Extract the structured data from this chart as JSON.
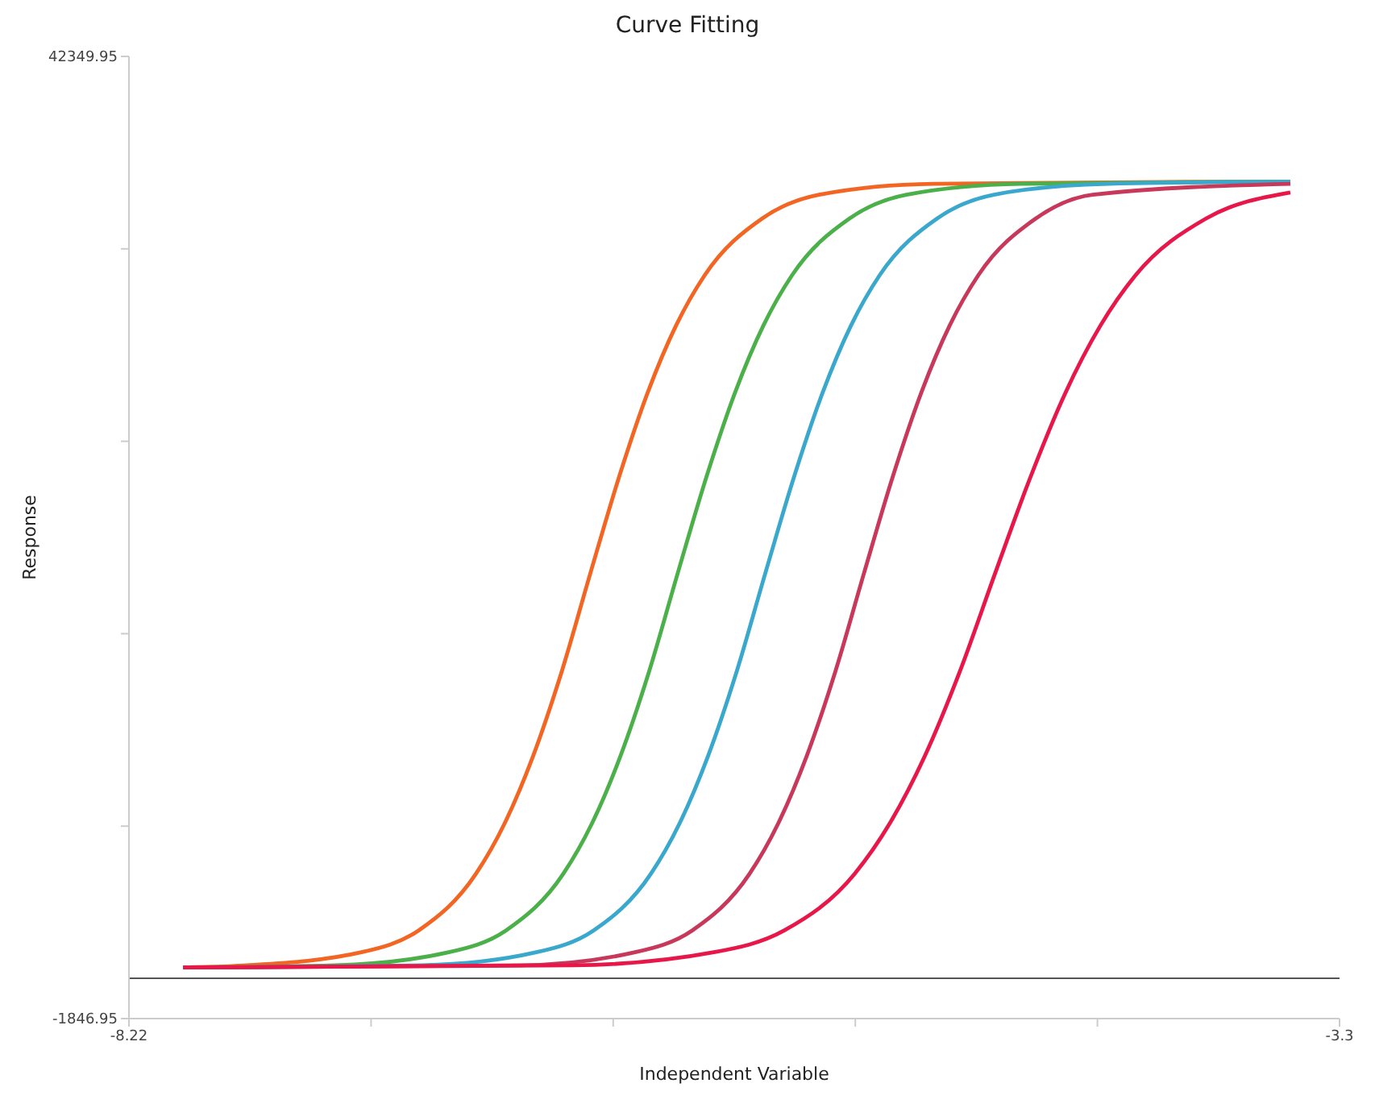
{
  "chart_data": {
    "type": "line",
    "title": "Curve Fitting",
    "xlabel": "Independent Variable",
    "ylabel": "Response",
    "xlim": [
      -8.22,
      -3.3
    ],
    "xticks": [
      -8.22,
      {
        "value": -7.236,
        "label": null
      },
      {
        "value": -6.252,
        "label": null
      },
      {
        "value": -5.268,
        "label": null
      },
      {
        "value": -4.284,
        "label": null
      },
      -3.3
    ],
    "ylim": [
      -1846.95,
      42349.95
    ],
    "yticks": [
      -1846.95,
      {
        "value": 6992.43,
        "label": null
      },
      {
        "value": 15831.81,
        "label": null
      },
      {
        "value": 24671.19,
        "label": null
      },
      {
        "value": 33510.57,
        "label": null
      },
      42349.95
    ],
    "grid": false,
    "marker": "none",
    "line_style": "solid",
    "ref_lines": [
      {
        "axis": "y",
        "value": 0,
        "color": "#555555"
      }
    ],
    "series": [
      {
        "color": "#f26522",
        "x": [
          -8,
          -7.74,
          -7.275,
          -7.043,
          -6.81,
          -6.694,
          -6.578,
          -6.461,
          -6.345,
          -6.229,
          -6.112,
          -5.996,
          -5.88,
          -5.647,
          -5.415,
          -4.95,
          -3.5
        ],
        "values": [
          500,
          600,
          1200,
          2200,
          4800,
          7100,
          10200,
          14100,
          18600,
          23000,
          26900,
          30000,
          32300,
          34900,
          36000,
          36500,
          36600
        ]
      },
      {
        "color": "#4cb04a",
        "x": [
          -8,
          -7.385,
          -6.92,
          -6.688,
          -6.455,
          -6.339,
          -6.223,
          -6.106,
          -5.99,
          -5.874,
          -5.757,
          -5.641,
          -5.525,
          -5.292,
          -5.06,
          -4.595,
          -3.5
        ],
        "values": [
          500,
          600,
          1200,
          2200,
          4800,
          7100,
          10200,
          14100,
          18600,
          23000,
          26900,
          30000,
          32300,
          34900,
          36000,
          36500,
          36600
        ]
      },
      {
        "color": "#3aa8cc",
        "x": [
          -8,
          -7.029,
          -6.564,
          -6.332,
          -6.099,
          -5.983,
          -5.867,
          -5.75,
          -5.634,
          -5.518,
          -5.401,
          -5.285,
          -5.169,
          -4.936,
          -4.704,
          -4.239,
          -3.5
        ],
        "values": [
          500,
          600,
          1200,
          2200,
          4800,
          7100,
          10200,
          14100,
          18600,
          23000,
          26900,
          30000,
          32300,
          34900,
          36000,
          36500,
          36600
        ]
      },
      {
        "color": "#c8385a",
        "x": [
          -8,
          -6.628,
          -6.163,
          -5.931,
          -5.698,
          -5.582,
          -5.466,
          -5.349,
          -5.233,
          -5.117,
          -5.0,
          -4.884,
          -4.768,
          -4.535,
          -4.303,
          -3.5
        ],
        "values": [
          500,
          600,
          1200,
          2200,
          4800,
          7100,
          10200,
          14100,
          18600,
          23000,
          26900,
          30000,
          32300,
          34900,
          36000,
          36500
        ]
      },
      {
        "color": "#e8174a",
        "x": [
          -8,
          -6.414,
          -5.843,
          -5.557,
          -5.271,
          -5.129,
          -4.986,
          -4.843,
          -4.7,
          -4.557,
          -4.414,
          -4.271,
          -4.129,
          -3.843,
          -3.5
        ],
        "values": [
          500,
          600,
          1200,
          2200,
          4800,
          7100,
          10200,
          14100,
          18600,
          23000,
          26900,
          30000,
          32300,
          34900,
          36100
        ]
      }
    ]
  }
}
